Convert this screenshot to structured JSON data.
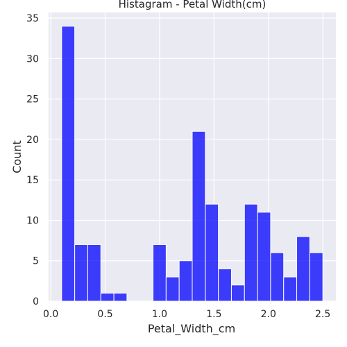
{
  "chart_data": {
    "type": "bar",
    "title": "Histagram - Petal Width(cm)",
    "xlabel": "Petal_Width_cm",
    "ylabel": "Count",
    "xlim": [
      -0.02,
      2.62
    ],
    "ylim": [
      0,
      35.7
    ],
    "xticks": [
      0.0,
      0.5,
      1.0,
      1.5,
      2.0,
      2.5
    ],
    "xtick_labels": [
      "0.0",
      "0.5",
      "1.0",
      "1.5",
      "2.0",
      "2.5"
    ],
    "yticks": [
      0,
      5,
      10,
      15,
      20,
      25,
      30,
      35
    ],
    "ytick_labels": [
      "0",
      "5",
      "10",
      "15",
      "20",
      "25",
      "30",
      "35"
    ],
    "grid": true,
    "bar_color": "#0000ff",
    "background_color": "#eaeaf2",
    "grid_color": "#ffffff",
    "bins": [
      {
        "x0": 0.1,
        "x1": 0.22,
        "count": 34
      },
      {
        "x0": 0.22,
        "x1": 0.34,
        "count": 7
      },
      {
        "x0": 0.34,
        "x1": 0.46,
        "count": 7
      },
      {
        "x0": 0.46,
        "x1": 0.58,
        "count": 1
      },
      {
        "x0": 0.58,
        "x1": 0.7,
        "count": 1
      },
      {
        "x0": 0.7,
        "x1": 0.82,
        "count": 0
      },
      {
        "x0": 0.82,
        "x1": 0.94,
        "count": 0
      },
      {
        "x0": 0.94,
        "x1": 1.06,
        "count": 7
      },
      {
        "x0": 1.06,
        "x1": 1.18,
        "count": 3
      },
      {
        "x0": 1.18,
        "x1": 1.3,
        "count": 5
      },
      {
        "x0": 1.3,
        "x1": 1.42,
        "count": 21
      },
      {
        "x0": 1.42,
        "x1": 1.54,
        "count": 12
      },
      {
        "x0": 1.54,
        "x1": 1.66,
        "count": 4
      },
      {
        "x0": 1.66,
        "x1": 1.78,
        "count": 2
      },
      {
        "x0": 1.78,
        "x1": 1.9,
        "count": 12
      },
      {
        "x0": 1.9,
        "x1": 2.02,
        "count": 11
      },
      {
        "x0": 2.02,
        "x1": 2.14,
        "count": 6
      },
      {
        "x0": 2.14,
        "x1": 2.26,
        "count": 3
      },
      {
        "x0": 2.26,
        "x1": 2.38,
        "count": 8
      },
      {
        "x0": 2.38,
        "x1": 2.5,
        "count": 6
      }
    ]
  }
}
